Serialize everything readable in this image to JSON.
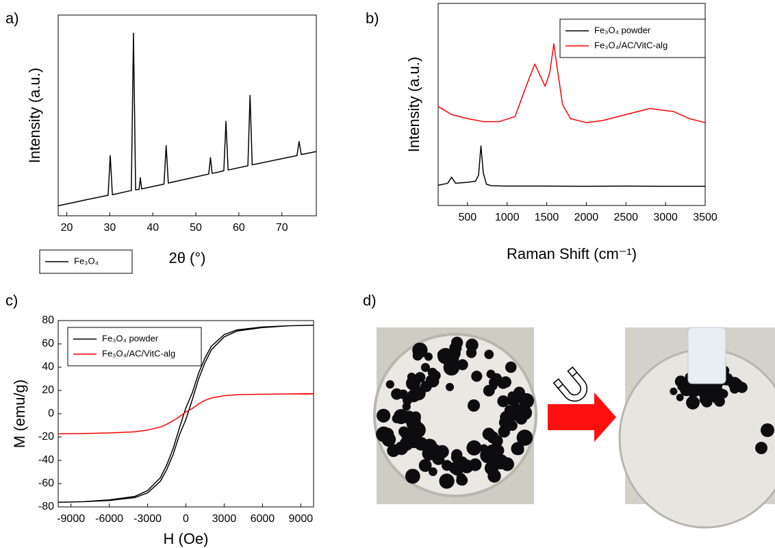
{
  "chart_data": [
    {
      "type": "line",
      "panel_label": "a)",
      "x_label": "2θ (°)",
      "y_label": "Intensity (a.u.)",
      "legend": "below",
      "xlim": [
        18,
        78
      ],
      "xticks": [
        20,
        30,
        40,
        50,
        60,
        70
      ],
      "ylim": [
        0,
        100
      ],
      "series": [
        {
          "name": "Fe₃O₄",
          "color": "#000000",
          "x": [
            18,
            20,
            25,
            29.6,
            30.1,
            30.6,
            35.0,
            35.5,
            36.0,
            36.8,
            37.1,
            37.4,
            42.6,
            43.1,
            43.6,
            53.0,
            53.4,
            53.8,
            56.5,
            57.0,
            57.5,
            62.1,
            62.6,
            63.1,
            73.5,
            74.0,
            74.5,
            78
          ],
          "values": [
            5,
            5.9,
            8.2,
            10.2,
            30,
            10.5,
            12.6,
            91,
            12.9,
            13.2,
            19,
            13.4,
            15.8,
            35,
            16.3,
            20.8,
            29,
            21.1,
            22.4,
            47,
            22.8,
            24.9,
            60,
            25.4,
            30,
            37,
            30.5,
            32
          ]
        }
      ]
    },
    {
      "type": "line",
      "panel_label": "b)",
      "x_label": "Raman Shift (cm⁻¹)",
      "y_label": "Intensity (a.u.)",
      "legend": "upper right",
      "xlim": [
        130,
        3500
      ],
      "xticks": [
        500,
        1000,
        1500,
        2000,
        2500,
        3000,
        3500
      ],
      "ylim": [
        0,
        100
      ],
      "series": [
        {
          "name": "Fe₃O₄ powder",
          "color": "#000000",
          "x": [
            130,
            250,
            300,
            350,
            500,
            600,
            640,
            670,
            700,
            740,
            800,
            1000,
            1500,
            2000,
            2500,
            3000,
            3500
          ],
          "values": [
            10,
            11,
            14,
            11,
            11.5,
            12,
            15,
            29.5,
            16,
            10.5,
            9.8,
            9.6,
            9.6,
            9.5,
            9.6,
            9.5,
            9.5
          ]
        },
        {
          "name": "Fe₃O₄/AC/VitC-alg",
          "color": "#ff0000",
          "x": [
            130,
            300,
            500,
            700,
            900,
            1100,
            1250,
            1350,
            1420,
            1480,
            1540,
            1590,
            1640,
            1700,
            1800,
            2000,
            2200,
            2500,
            2800,
            3100,
            3300,
            3500
          ],
          "values": [
            49,
            45,
            43,
            41.5,
            41.5,
            44,
            60,
            70,
            64,
            59,
            66,
            80,
            66,
            50,
            43,
            41,
            42,
            45,
            48,
            46.5,
            43,
            41
          ]
        }
      ]
    },
    {
      "type": "line",
      "panel_label": "c)",
      "x_label": "H (Oe)",
      "y_label": "M (emu/g)",
      "legend": "upper left",
      "xlim": [
        -10000,
        10000
      ],
      "xticks": [
        -9000,
        -6000,
        -3000,
        0,
        3000,
        6000,
        9000
      ],
      "ylim": [
        -80,
        80
      ],
      "yticks": [
        -80,
        -60,
        -40,
        -20,
        0,
        20,
        40,
        60,
        80
      ],
      "x": [
        10000,
        8000,
        6000,
        4000,
        3000,
        2000,
        1500,
        1000,
        500,
        0,
        -500,
        -1000,
        -1500,
        -2000,
        -3000,
        -4000,
        -6000,
        -8000,
        -10000,
        -8000,
        -6000,
        -4000,
        -3000,
        -2000,
        -1500,
        -1000,
        -500,
        0,
        500,
        1000,
        1500,
        2000,
        3000,
        4000,
        6000,
        8000,
        10000
      ],
      "series": [
        {
          "name": "Fe₃O₄ powder",
          "color": "#000000",
          "values": [
            76,
            75.5,
            74.5,
            72,
            68,
            58,
            48,
            35,
            18,
            5,
            -12,
            -30,
            -44,
            -55,
            -66,
            -71,
            -74,
            -75.5,
            -76,
            -75.5,
            -74.5,
            -72,
            -68,
            -58,
            -48,
            -35,
            -18,
            -5,
            12,
            30,
            44,
            55,
            66,
            71,
            74,
            75.5,
            76
          ]
        },
        {
          "name": "Fe₃O₄/AC/VitC-alg",
          "color": "#ff0000",
          "values": [
            17,
            17,
            16.8,
            16.3,
            15.5,
            13.5,
            11.5,
            8.5,
            4.5,
            1.5,
            -2.5,
            -6,
            -9,
            -11.5,
            -14,
            -15.5,
            -16.5,
            -17,
            -17.3,
            -17,
            -16.5,
            -15.5,
            -14,
            -11.5,
            -9,
            -6,
            -2.5,
            1.5,
            4.5,
            8.5,
            11.5,
            13.5,
            15.5,
            16.3,
            16.8,
            17,
            17.3
          ]
        }
      ]
    }
  ],
  "photo_panel": {
    "label": "d)"
  }
}
